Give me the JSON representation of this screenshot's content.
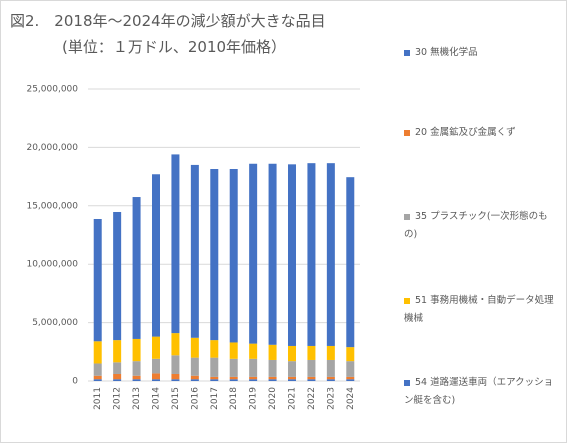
{
  "chart_data": {
    "type": "stacked_bar",
    "title": "図2.　2018年～2024年の減少額が大きな品目",
    "subtitle": "(単位：１万ドル、2010年価格）",
    "categories": [
      "2011",
      "2012",
      "2013",
      "2014",
      "2015",
      "2016",
      "2017",
      "2018",
      "2019",
      "2020",
      "2021",
      "2022",
      "2023",
      "2024"
    ],
    "series": [
      {
        "name": "30 無機化学品",
        "color": "#4472c4",
        "values": [
          150000,
          150000,
          150000,
          150000,
          150000,
          150000,
          150000,
          150000,
          150000,
          150000,
          150000,
          150000,
          150000,
          150000
        ]
      },
      {
        "name": "20 金属鉱及び金属くず",
        "color": "#ed7d31",
        "values": [
          300000,
          450000,
          300000,
          500000,
          450000,
          300000,
          200000,
          200000,
          200000,
          200000,
          200000,
          200000,
          200000,
          200000
        ]
      },
      {
        "name": "35 プラスチック(一次形態のもの)",
        "color": "#a5a5a5",
        "values": [
          1050000,
          1000000,
          1250000,
          1250000,
          1600000,
          1550000,
          1650000,
          1550000,
          1550000,
          1450000,
          1350000,
          1450000,
          1450000,
          1350000
        ]
      },
      {
        "name": "51 事務用機械・自動データ処理機械",
        "color": "#ffc000",
        "values": [
          1900000,
          1900000,
          1900000,
          1900000,
          1900000,
          1700000,
          1500000,
          1400000,
          1300000,
          1300000,
          1300000,
          1200000,
          1200000,
          1200000
        ]
      },
      {
        "name": "54 道路運送車両（エアクッション艇を含む)",
        "color": "#4472c4",
        "values": [
          10470000,
          10970000,
          12150000,
          13900000,
          15300000,
          14800000,
          14650000,
          14850000,
          15400000,
          15500000,
          15550000,
          15650000,
          15650000,
          14550000
        ]
      }
    ],
    "ylim": [
      0,
      25000000
    ],
    "yticks": [
      0,
      {
        "value": 5000000,
        "label": "5,000,000"
      },
      {
        "value": 10000000,
        "label": "10,000,000"
      },
      {
        "value": 15000000,
        "label": "15,000,000"
      },
      {
        "value": 20000000,
        "label": "20,000,000"
      },
      {
        "value": 25000000,
        "label": "25,000,000"
      }
    ],
    "grid": true
  }
}
